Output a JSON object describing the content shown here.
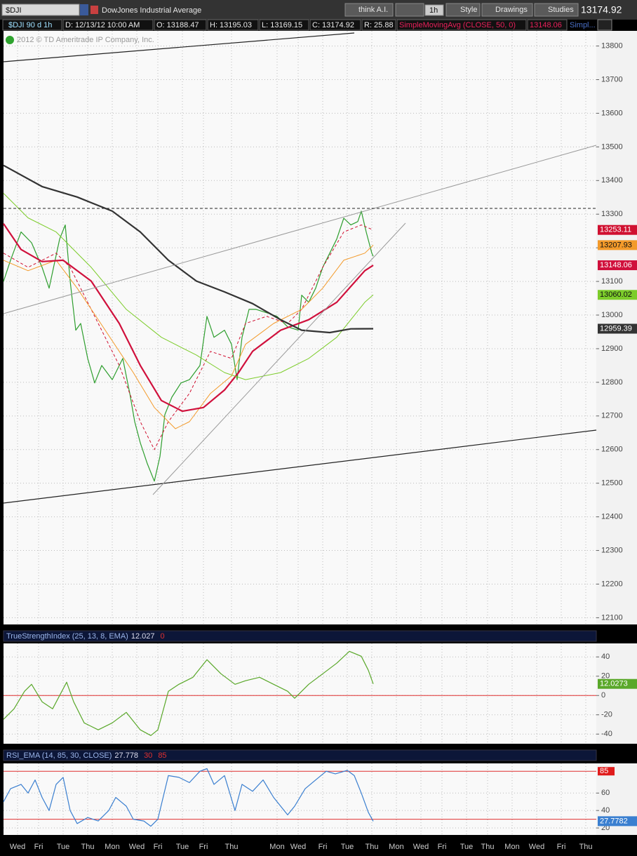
{
  "toolbar": {
    "symbol": "$DJI",
    "description": "DowJones Industrial Average",
    "buttons": [
      "think A.I.",
      "1h",
      "Style",
      "Drawings",
      "Studies"
    ],
    "last": "13174.92"
  },
  "info_bar": {
    "symbol": "$DJI 90 d 1h",
    "date": "D: 12/13/12 10:00 AM",
    "open": "O: 13188.47",
    "high": "H: 13195.03",
    "low": "L: 13169.15",
    "close": "C: 13174.92",
    "range": "R: 25.88",
    "study": "SimpleMovingAvg (CLOSE, 50, 0)",
    "study_value": "13148.06",
    "more": "Simpl..."
  },
  "chart_data": [
    {
      "type": "line",
      "watermark": "2012 © TD Ameritrade IP Company, Inc.",
      "xlim": [
        0,
        169
      ],
      "ylim": [
        12080,
        13845
      ],
      "grid": true,
      "yticks": [
        13800,
        13700,
        13600,
        13500,
        13400,
        13300,
        13200,
        13100,
        13000,
        12900,
        12800,
        12700,
        12600,
        12500,
        12400,
        12300,
        12200,
        12100
      ],
      "xticks": [
        {
          "value": 4,
          "label": "Wed"
        },
        {
          "value": 10,
          "label": "Fri"
        },
        {
          "value": 17,
          "label": "Tue"
        },
        {
          "value": 24,
          "label": "Thu"
        },
        {
          "value": 31,
          "label": "Mon"
        },
        {
          "value": 38,
          "label": "Wed"
        },
        {
          "value": 44,
          "label": "Fri"
        },
        {
          "value": 51,
          "label": "Tue"
        },
        {
          "value": 57,
          "label": "Fri"
        },
        {
          "value": 65,
          "label": "Thu"
        },
        {
          "value": 78,
          "label": "Mon"
        },
        {
          "value": 84,
          "label": "Wed"
        },
        {
          "value": 91,
          "label": "Fri"
        },
        {
          "value": 98,
          "label": "Tue"
        },
        {
          "value": 105,
          "label": "Thu"
        },
        {
          "value": 112,
          "label": "Mon"
        },
        {
          "value": 119,
          "label": "Wed"
        },
        {
          "value": 125,
          "label": "Fri"
        },
        {
          "value": 132,
          "label": "Tue"
        },
        {
          "value": 138,
          "label": "Thu"
        },
        {
          "value": 145,
          "label": "Mon"
        },
        {
          "value": 152,
          "label": "Wed"
        },
        {
          "value": 159,
          "label": "Fri"
        },
        {
          "value": 166,
          "label": "Thu"
        }
      ],
      "series": [
        {
          "color": "#2e9e2e",
          "width": 1.2,
          "axis_label": false,
          "x": [
            0,
            2,
            5,
            8,
            11,
            13,
            16,
            17.6,
            19,
            20.6,
            22,
            24,
            26,
            28,
            31,
            34,
            36,
            37.4,
            39,
            41,
            43,
            44.6,
            46,
            48,
            50.6,
            53,
            56,
            58,
            60,
            63,
            65,
            66.6,
            68,
            70,
            72,
            75,
            78,
            81,
            84,
            85,
            87,
            89,
            91,
            93,
            95,
            97,
            99,
            101,
            102,
            103.4,
            105,
            105.4
          ],
          "values": [
            13100,
            13163,
            13247,
            13215,
            13142,
            13080,
            13226,
            13268,
            13101,
            12955,
            12975,
            12871,
            12798,
            12850,
            12808,
            12871,
            12767,
            12683,
            12620,
            12558,
            12506,
            12579,
            12704,
            12756,
            12798,
            12808,
            12850,
            12996,
            12934,
            12955,
            12913,
            12808,
            12934,
            13017,
            13017,
            13007,
            12996,
            12965,
            12955,
            13059,
            13038,
            13080,
            13142,
            13184,
            13226,
            13288,
            13268,
            13278,
            13309,
            13247,
            13184,
            13174.92
          ]
        },
        {
          "color": "#d01030",
          "width": 1,
          "dash": true,
          "axis_label": true,
          "x": [
            0,
            7,
            15,
            19,
            25,
            33,
            39,
            43,
            47,
            53,
            59,
            65,
            69,
            75,
            81,
            85,
            91,
            97,
            102,
            105.4
          ],
          "values": [
            13184,
            13142,
            13184,
            13142,
            13017,
            12850,
            12683,
            12600,
            12683,
            12767,
            12892,
            12871,
            12975,
            12996,
            12975,
            13017,
            13142,
            13247,
            13268,
            13253.11
          ]
        },
        {
          "color": "#f39a2a",
          "width": 1,
          "axis_label": true,
          "x": [
            0,
            7,
            15,
            21,
            29,
            37,
            43,
            49,
            53,
            59,
            65,
            69,
            77,
            85,
            91,
            97,
            103,
            105.4
          ],
          "values": [
            13163,
            13132,
            13163,
            13080,
            12955,
            12829,
            12725,
            12662,
            12683,
            12767,
            12819,
            12913,
            12975,
            13017,
            13080,
            13163,
            13184,
            13207.93
          ]
        },
        {
          "color": "#d0103c",
          "width": 2.2,
          "axis_label": true,
          "x": [
            0,
            5,
            11,
            17,
            25,
            33,
            39,
            45,
            51,
            57,
            63,
            67,
            71,
            79,
            87,
            95,
            103,
            105.4
          ],
          "values": [
            13272,
            13195,
            13159,
            13163,
            13101,
            12975,
            12850,
            12746,
            12714,
            12725,
            12777,
            12829,
            12892,
            12955,
            12986,
            13038,
            13132,
            13148.06
          ]
        },
        {
          "color": "#7ccc2a",
          "width": 1,
          "axis_label": true,
          "x": [
            0,
            7,
            15,
            25,
            35,
            45,
            55,
            63,
            69,
            79,
            87,
            95,
            103,
            105.4
          ],
          "values": [
            13362,
            13289,
            13247,
            13142,
            13017,
            12934,
            12881,
            12829,
            12808,
            12829,
            12871,
            12934,
            13038,
            13060.02
          ]
        },
        {
          "color": "#333333",
          "width": 2.2,
          "axis_label": true,
          "x": [
            0,
            11,
            21,
            31,
            39,
            47,
            55,
            63,
            71,
            79,
            85,
            93,
            99,
            105.4
          ],
          "values": [
            13445,
            13382,
            13351,
            13309,
            13247,
            13163,
            13101,
            13069,
            13034,
            12986,
            12955,
            12948,
            12959,
            12959.39
          ]
        }
      ]
    },
    {
      "type": "line",
      "title": "TrueStrengthIndex (25, 13, 8, EMA)",
      "legend_value": "12.027",
      "levels": [
        0
      ],
      "xlim": [
        0,
        169
      ],
      "ylim": [
        -50,
        54
      ],
      "yticks": [
        40,
        20,
        0,
        -20,
        -40
      ],
      "series": [
        {
          "color": "#5aa82a",
          "width": 1.2,
          "axis_label": true,
          "x": [
            0,
            3,
            6,
            8,
            11,
            14,
            18,
            20,
            23,
            27,
            31,
            35,
            39,
            42,
            44,
            47,
            50,
            54,
            58,
            62,
            66,
            69,
            73,
            77,
            81,
            83,
            87,
            91,
            95,
            98.6,
            102,
            104,
            105.4
          ],
          "values": [
            -24.7,
            -13.8,
            4.4,
            11.6,
            -6.5,
            -13.8,
            13.8,
            -6.5,
            -28.4,
            -35.6,
            -28.4,
            -17.5,
            -35.6,
            -41.5,
            -35.6,
            4.4,
            11.6,
            18.9,
            37.1,
            22.5,
            11.6,
            15.3,
            18.9,
            11.6,
            4.4,
            -2.9,
            11.6,
            22.5,
            33.5,
            45.8,
            40.7,
            26.2,
            12.0273
          ]
        }
      ]
    },
    {
      "type": "line",
      "title": "RSI_EMA (14, 85, 30, CLOSE)",
      "legend_value": "27.778",
      "levels": [
        30,
        85
      ],
      "xlim": [
        0,
        169
      ],
      "ylim": [
        12,
        94
      ],
      "yticks": [
        60,
        40,
        20
      ],
      "series": [
        {
          "color": "#3a7fd0",
          "width": 1.2,
          "axis_label": true,
          "x": [
            0,
            2,
            5,
            7,
            9,
            11,
            13,
            15,
            17,
            19,
            21,
            24,
            27,
            30,
            32,
            35,
            37,
            40,
            42,
            44,
            47,
            50,
            53,
            56,
            58,
            60,
            63,
            66,
            68,
            71,
            74,
            77,
            81,
            83,
            86,
            89,
            92,
            94.6,
            98,
            100,
            102,
            104,
            105.4
          ],
          "values": [
            50,
            65,
            70,
            60,
            75,
            55,
            40,
            70,
            78,
            40,
            25,
            32,
            28,
            40,
            55,
            45,
            30,
            28,
            22,
            30,
            80,
            78,
            72,
            85,
            88,
            70,
            80,
            40,
            70,
            62,
            75,
            55,
            35,
            45,
            65,
            75,
            85,
            82,
            86,
            80,
            60,
            38,
            27.7782
          ]
        }
      ]
    }
  ]
}
